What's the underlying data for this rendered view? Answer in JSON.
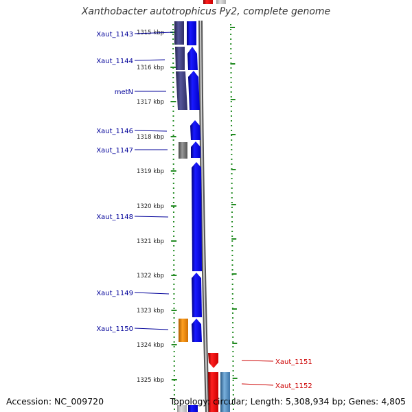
{
  "title": "Xanthobacter autotrophicus Py2, complete genome",
  "footer": {
    "accession": "Accession: NC_009720",
    "summary": "Topology: circular; Length: 5,308,934 bp; Genes: 4,805"
  },
  "ticks": [
    "1315 kbp",
    "1316 kbp",
    "1317 kbp",
    "1318 kbp",
    "1319 kbp",
    "1320 kbp",
    "1321 kbp",
    "1322 kbp",
    "1323 kbp",
    "1324 kbp",
    "1325 kbp"
  ],
  "gene_labels_left": [
    "Xaut_1143",
    "Xaut_1144",
    "metN",
    "Xaut_1146",
    "Xaut_1147",
    "Xaut_1148",
    "Xaut_1149",
    "Xaut_1150"
  ],
  "gene_labels_right": [
    "Xaut_1151",
    "Xaut_1152"
  ],
  "colors": {
    "forward_gene": "#0000ee",
    "reverse_gene": "#ee0000",
    "cog_purple": "#3a3a7a",
    "cog_gray": "#777777",
    "cog_orange": "#ee8800",
    "cog_steelblue": "#4682b4",
    "label_left": "#000099",
    "label_right": "#cc0000",
    "dotted_track": "#228b22"
  }
}
